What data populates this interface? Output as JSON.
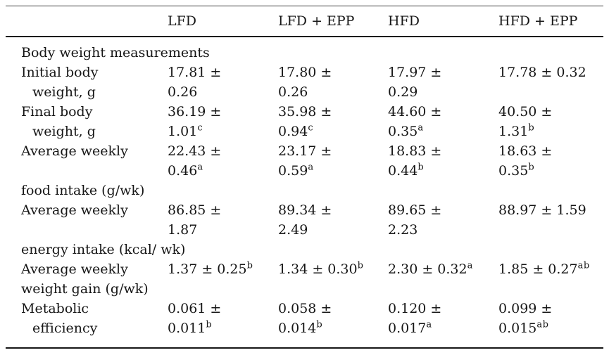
{
  "header": {
    "columns": [
      "",
      "LFD",
      "LFD + EPP",
      "HFD",
      "HFD + EPP"
    ]
  },
  "rows": {
    "body_section": {
      "label": "Body weight measurements"
    },
    "initial_body_weight": {
      "label1": "Initial body",
      "label2": "weight, g",
      "values": [
        {
          "l1": "17.81 ±",
          "l2": "0.26"
        },
        {
          "l1": "17.80 ±",
          "l2": "0.26"
        },
        {
          "l1": "17.97 ±",
          "l2": "0.29"
        },
        {
          "l1": "17.78 ± 0.32"
        }
      ]
    },
    "final_body_weight": {
      "label1": "Final body",
      "label2": "weight, g",
      "values": [
        {
          "l1": "36.19 ±",
          "l2": "1.01",
          "sup": "c"
        },
        {
          "l1": "35.98 ±",
          "l2": "0.94",
          "sup": "c"
        },
        {
          "l1": "44.60 ±",
          "l2": "0.35",
          "sup": "a"
        },
        {
          "l1": "40.50 ±",
          "l2": "1.31",
          "sup": "b"
        }
      ]
    },
    "avg_weekly_food_intake": {
      "label1": "Average weekly",
      "label2": "food intake (g/wk)",
      "values": [
        {
          "l1": "22.43 ±",
          "l2": "0.46",
          "sup": "a"
        },
        {
          "l1": "23.17 ±",
          "l2": "0.59",
          "sup": "a"
        },
        {
          "l1": "18.83 ±",
          "l2": "0.44",
          "sup": "b"
        },
        {
          "l1": "18.63 ±",
          "l2": "0.35",
          "sup": "b"
        }
      ]
    },
    "avg_weekly_energy_intake": {
      "label1": "Average weekly",
      "label2": "energy intake (kcal/ wk)",
      "values": [
        {
          "l1": "86.85 ±",
          "l2": "1.87"
        },
        {
          "l1": "89.34 ±",
          "l2": "2.49"
        },
        {
          "l1": "89.65 ±",
          "l2": "2.23"
        },
        {
          "l1": "88.97 ± 1.59"
        }
      ]
    },
    "avg_weekly_weight_gain": {
      "label1": "Average weekly",
      "label2": "weight gain (g/wk)",
      "values": [
        {
          "l1": "1.37 ± 0.25",
          "sup": "b"
        },
        {
          "l1": "1.34 ± 0.30",
          "sup": "b"
        },
        {
          "l1": "2.30 ± 0.32",
          "sup": "a"
        },
        {
          "l1": "1.85 ± 0.27",
          "sup": "ab"
        }
      ]
    },
    "metabolic_efficiency": {
      "label1": "Metabolic",
      "label2": "efficiency",
      "values": [
        {
          "l1": "0.061 ±",
          "l2": "0.011",
          "sup": "b"
        },
        {
          "l1": "0.058 ±",
          "l2": "0.014",
          "sup": "b"
        },
        {
          "l1": "0.120 ±",
          "l2": "0.017",
          "sup": "a"
        },
        {
          "l1": "0.099 ±",
          "l2": "0.015",
          "sup": "ab"
        }
      ]
    }
  }
}
